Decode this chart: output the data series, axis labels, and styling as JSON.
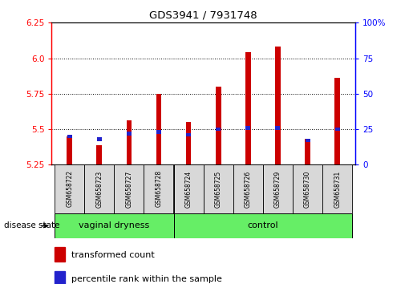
{
  "title": "GDS3941 / 7931748",
  "samples": [
    "GSM658722",
    "GSM658723",
    "GSM658727",
    "GSM658728",
    "GSM658724",
    "GSM658725",
    "GSM658726",
    "GSM658729",
    "GSM658730",
    "GSM658731"
  ],
  "red_values": [
    5.45,
    5.39,
    5.56,
    5.75,
    5.55,
    5.8,
    6.04,
    6.08,
    5.43,
    5.86
  ],
  "blue_percentiles": [
    20,
    18,
    22,
    23,
    21,
    25,
    26,
    26,
    17,
    25
  ],
  "ymin": 5.25,
  "ymax": 6.25,
  "yticks": [
    5.25,
    5.5,
    5.75,
    6.0,
    6.25
  ],
  "right_yticks": [
    0,
    25,
    50,
    75,
    100
  ],
  "groups": [
    {
      "label": "vaginal dryness",
      "start": 0,
      "end": 4
    },
    {
      "label": "control",
      "start": 4,
      "end": 10
    }
  ],
  "group_separator_idx": 4,
  "legend_red": "transformed count",
  "legend_blue": "percentile rank within the sample",
  "disease_state_label": "disease state",
  "bar_color_red": "#CC0000",
  "bar_color_blue": "#2222CC",
  "group_color": "#66EE66",
  "bar_width": 0.18,
  "base_value": 5.25
}
